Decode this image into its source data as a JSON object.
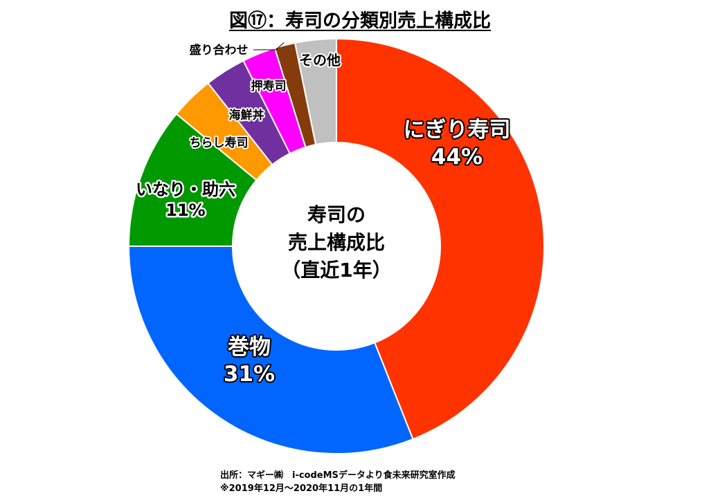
{
  "chart_data": {
    "type": "pie",
    "donut": true,
    "title": "図⑰：寿司の分類別売上構成比",
    "center_label": [
      "寿司の",
      "売上構成比",
      "（直近1年）"
    ],
    "slices": [
      {
        "label": "にぎり寿司",
        "value": 44,
        "value_label": "44%",
        "color": "#ff3300"
      },
      {
        "label": "巻物",
        "value": 31,
        "value_label": "31%",
        "color": "#0066ff"
      },
      {
        "label": "いなり・助六",
        "value": 11,
        "value_label": "11%",
        "color": "#009900"
      },
      {
        "label": "ちらし寿司",
        "value": 3.4,
        "color": "#ff9900"
      },
      {
        "label": "海鮮丼",
        "value": 3.2,
        "color": "#7030a0"
      },
      {
        "label": "押寿司",
        "value": 2.6,
        "color": "#ff00ff"
      },
      {
        "label": "盛り合わせ",
        "value": 1.6,
        "color": "#843c0c"
      },
      {
        "label": "その他",
        "value": 3.2,
        "color": "#c0c0c0"
      }
    ]
  },
  "source": {
    "line1": "出所：マギー㈱　i-codeMSデータより食未来研究室作成",
    "line2": "※2019年12月～2020年11月の1年間"
  }
}
